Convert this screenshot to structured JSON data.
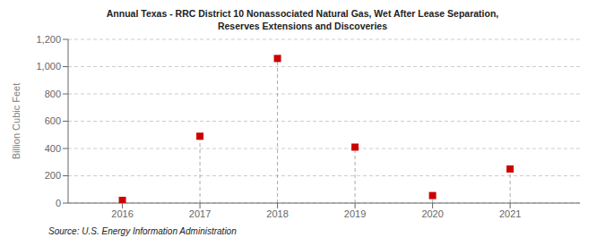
{
  "chart_data": {
    "type": "stem",
    "title": "Annual Texas - RRC District 10 Nonassociated Natural Gas, Wet After Lease Separation,\nReserves Extensions and Discoveries",
    "ylabel": "Billion Cubic Feet",
    "annotations": [
      "Source: U.S. Energy Information Administration"
    ],
    "x": [
      2016,
      2017,
      2018,
      2019,
      2020,
      2021
    ],
    "values": [
      20,
      490,
      1060,
      410,
      55,
      250
    ],
    "color": "#cc0000",
    "marker": "square",
    "line_style": "dashed",
    "xlim": [
      2015.3,
      2021.9
    ],
    "xticks": [
      2016,
      2017,
      2018,
      2019,
      2020,
      2021
    ],
    "ylim": [
      0,
      1200
    ],
    "yticks": [
      0,
      200,
      400,
      600,
      800,
      {
        "value": 1000,
        "label": "1,000"
      },
      {
        "value": 1200,
        "label": "1,200"
      }
    ],
    "grid": true
  }
}
